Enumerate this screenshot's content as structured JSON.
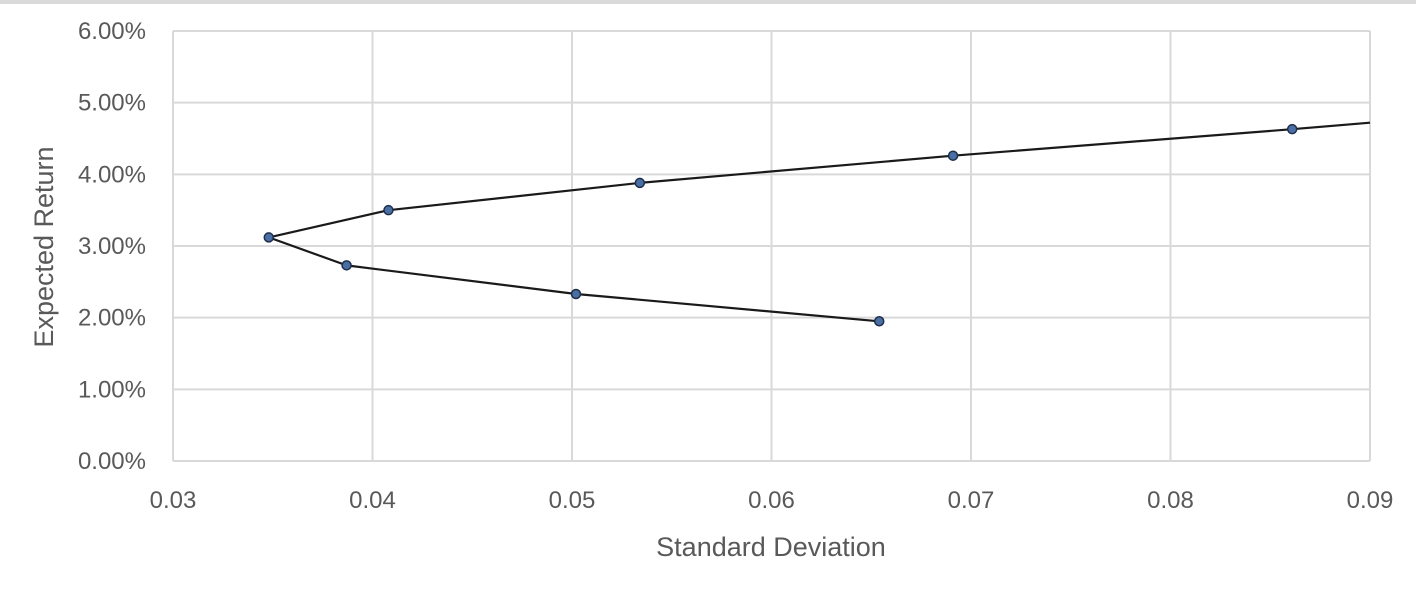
{
  "chart_data": {
    "type": "scatter",
    "title": "",
    "xlabel": "Standard Deviation",
    "ylabel": "Expected Return",
    "xlim": [
      0.03,
      0.09
    ],
    "ylim": [
      0,
      0.06
    ],
    "x_ticks": [
      "0.03",
      "0.04",
      "0.05",
      "0.06",
      "0.07",
      "0.08",
      "0.09"
    ],
    "y_ticks": [
      "0.00%",
      "1.00%",
      "2.00%",
      "3.00%",
      "4.00%",
      "5.00%",
      "6.00%"
    ],
    "grid": true,
    "legend": "none",
    "colors": {
      "marker_fill": "#4a6fa5",
      "marker_edge": "#1f2f4a",
      "line": "#1a1a1a",
      "grid": "#d9d9d9",
      "text": "#595959"
    },
    "series": [
      {
        "x": [
          0.0654,
          0.0502,
          0.0387,
          0.0348,
          0.0408,
          0.0534,
          0.0691,
          0.0861,
          0.09
        ],
        "y": [
          0.0195,
          0.0233,
          0.0273,
          0.0312,
          0.035,
          0.0388,
          0.0426,
          0.0463,
          0.0472
        ],
        "markers": [
          true,
          true,
          true,
          true,
          true,
          true,
          true,
          true,
          false
        ]
      }
    ]
  }
}
